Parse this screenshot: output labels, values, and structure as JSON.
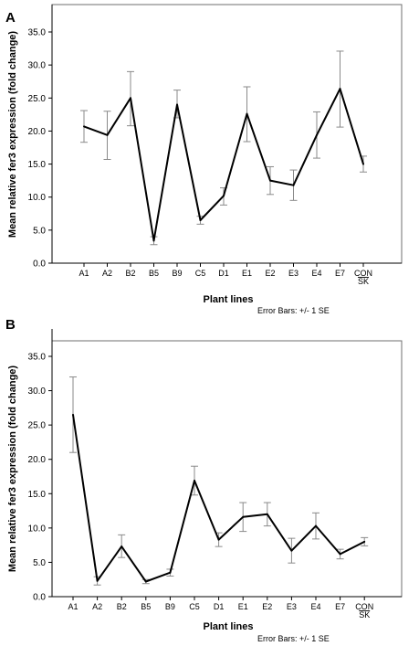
{
  "panels": [
    {
      "label": "A",
      "ylabel": "Mean relative fer3 expression (fold change)",
      "xlabel": "Plant lines",
      "note": "Error Bars: +/- 1 SE"
    },
    {
      "label": "B",
      "ylabel": "Mean relative fer3 expression (fold change)",
      "xlabel": "Plant lines",
      "note": "Error Bars: +/- 1 SE"
    }
  ],
  "chart_data": [
    {
      "type": "line",
      "title": "",
      "xlabel": "Plant lines",
      "ylabel": "Mean relative fer3 expression (fold change)",
      "ylim": [
        0,
        37.5
      ],
      "yticks": [
        "0.0",
        "5.0",
        "10.0",
        "15.0",
        "20.0",
        "25.0",
        "30.0",
        "35.0"
      ],
      "categories": [
        "A1",
        "A2",
        "B2",
        "B5",
        "B9",
        "C5",
        "D1",
        "E1",
        "E2",
        "E3",
        "E4",
        "E7",
        "CON_SK"
      ],
      "category_labels": [
        [
          "A1"
        ],
        [
          "A2"
        ],
        [
          "B2"
        ],
        [
          "B5"
        ],
        [
          "B9"
        ],
        [
          "C5"
        ],
        [
          "D1"
        ],
        [
          "E1"
        ],
        [
          "E2"
        ],
        [
          "E3"
        ],
        [
          "E4"
        ],
        [
          "E7"
        ],
        [
          "CON",
          "SK"
        ]
      ],
      "values": [
        20.7,
        19.4,
        25.0,
        3.4,
        24.0,
        6.5,
        10.2,
        22.6,
        12.5,
        11.8,
        19.4,
        26.4,
        15.0
      ],
      "error_low": [
        18.3,
        15.7,
        20.8,
        2.8,
        22.0,
        5.9,
        8.8,
        18.4,
        10.4,
        9.5,
        15.9,
        20.6,
        13.8
      ],
      "error_high": [
        23.1,
        23.0,
        29.0,
        4.0,
        26.2,
        7.1,
        11.4,
        26.7,
        14.6,
        14.1,
        22.9,
        32.1,
        16.2
      ],
      "note": "Error Bars: +/- 1 SE"
    },
    {
      "type": "line",
      "title": "",
      "xlabel": "Plant lines",
      "ylabel": "Mean relative fer3 expression (fold change)",
      "ylim": [
        0,
        37.5
      ],
      "yticks": [
        "0.0",
        "5.0",
        "10.0",
        "15.0",
        "20.0",
        "25.0",
        "30.0",
        "35.0"
      ],
      "categories": [
        "A1",
        "A2",
        "B2",
        "B5",
        "B9",
        "C5",
        "D1",
        "E1",
        "E2",
        "E3",
        "E4",
        "E7",
        "CON_SK"
      ],
      "category_labels": [
        [
          "A1"
        ],
        [
          "A2"
        ],
        [
          "B2"
        ],
        [
          "B5"
        ],
        [
          "B9"
        ],
        [
          "C5"
        ],
        [
          "D1"
        ],
        [
          "E1"
        ],
        [
          "E2"
        ],
        [
          "E3"
        ],
        [
          "E4"
        ],
        [
          "E7"
        ],
        [
          "CON",
          "SK"
        ]
      ],
      "values": [
        26.5,
        2.3,
        7.3,
        2.2,
        3.5,
        16.9,
        8.3,
        11.6,
        12.0,
        6.7,
        10.3,
        6.2,
        8.0
      ],
      "error_low": [
        21.0,
        1.7,
        5.7,
        1.9,
        3.0,
        14.8,
        7.3,
        9.5,
        10.3,
        4.9,
        8.4,
        5.5,
        7.4
      ],
      "error_high": [
        32.0,
        2.9,
        9.0,
        2.5,
        4.0,
        19.0,
        9.3,
        13.7,
        13.7,
        8.5,
        12.2,
        6.9,
        8.6
      ],
      "note": "Error Bars: +/- 1 SE"
    }
  ]
}
